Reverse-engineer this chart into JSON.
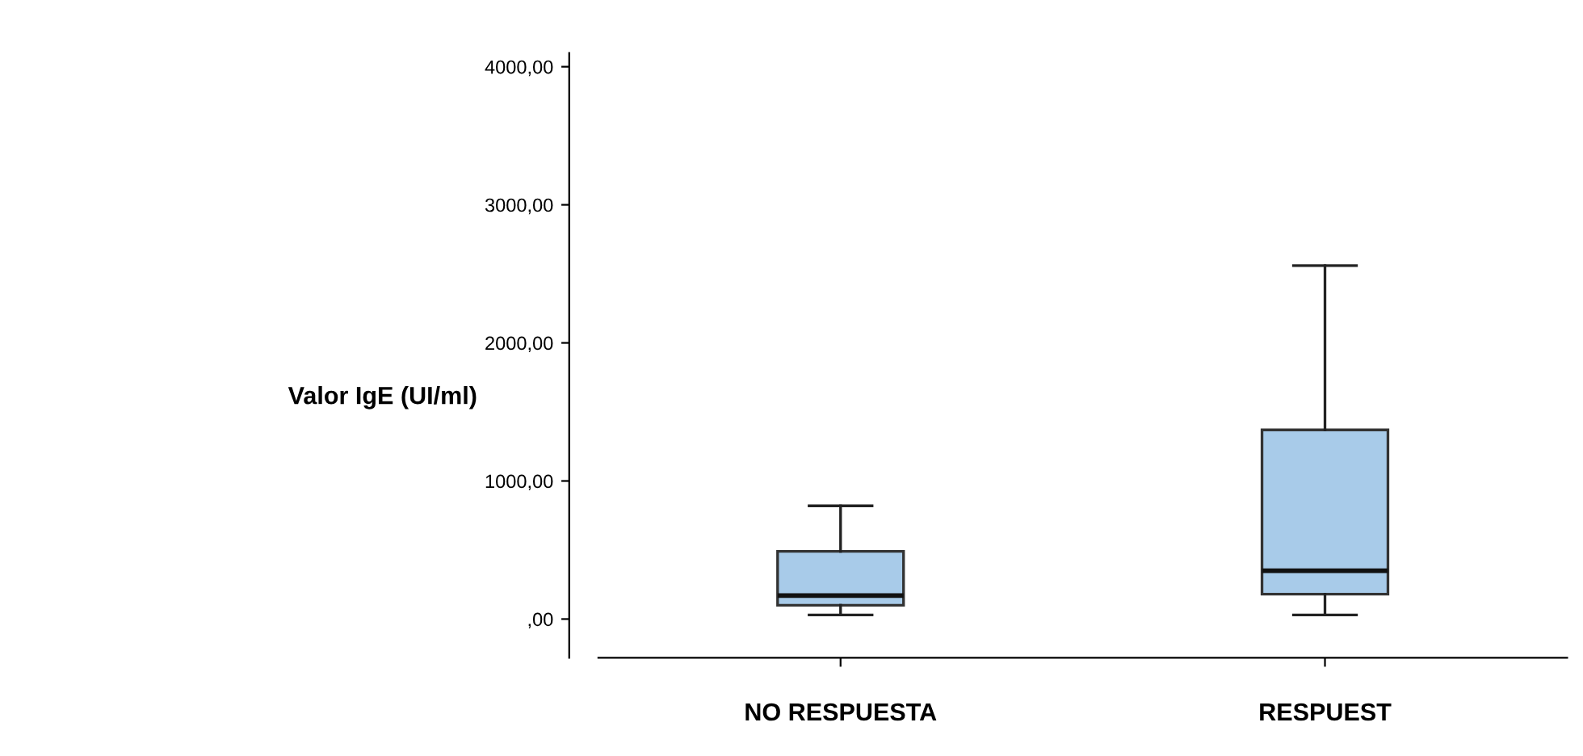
{
  "chart_data": {
    "type": "box",
    "ylabel": "Valor IgE (UI/ml)",
    "categories": [
      "NO RESPUESTA",
      "RESPUEST"
    ],
    "boxes": [
      {
        "low": 30,
        "q1": 100,
        "median": 170,
        "q3": 490,
        "high": 820
      },
      {
        "low": 30,
        "q1": 180,
        "median": 350,
        "q3": 1370,
        "high": 2560
      }
    ],
    "color": "#a8cbe9",
    "ylim": [
      -280,
      4100
    ],
    "yticks": [
      {
        "value": 0,
        "label": ",00"
      },
      {
        "value": 1000,
        "label": "1000,00"
      },
      {
        "value": 2000,
        "label": "2000,00"
      },
      {
        "value": 3000,
        "label": "3000,00"
      },
      {
        "value": 4000,
        "label": "4000,00"
      }
    ],
    "grid": false,
    "legend": false
  }
}
